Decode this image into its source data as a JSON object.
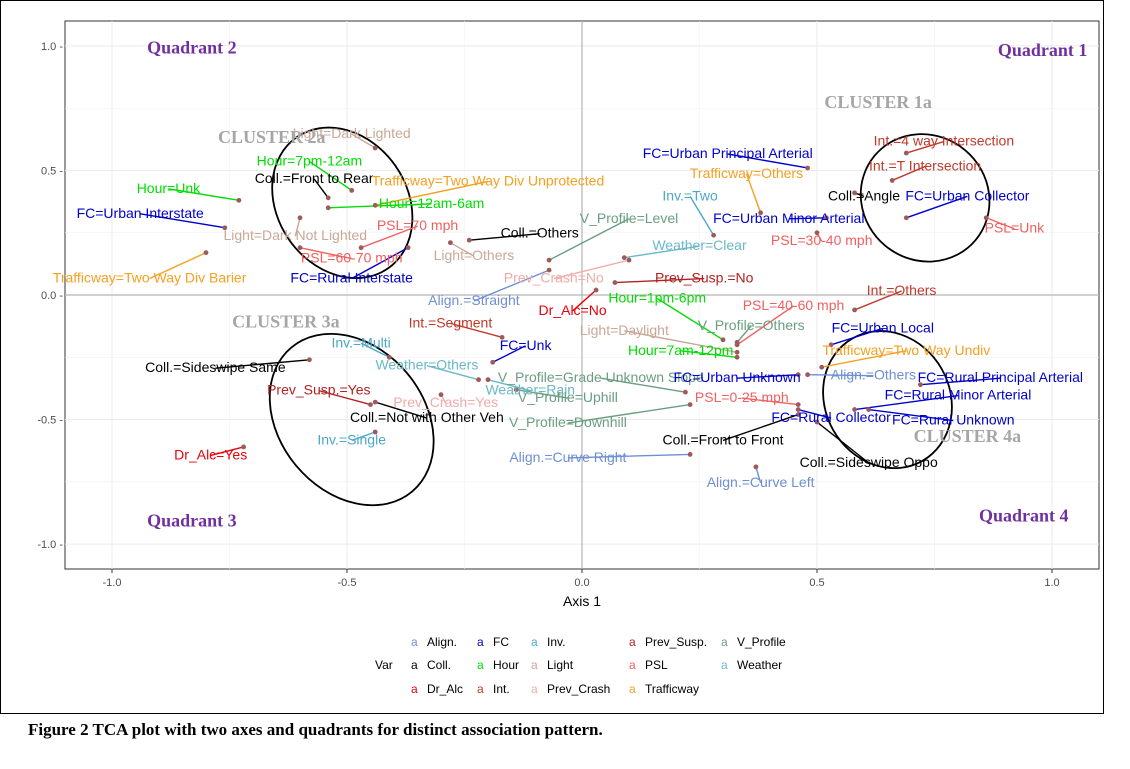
{
  "caption": "Figure 2 TCA plot with two axes and quadrants for distinct association pattern.",
  "colors": {
    "Align.": "#6e8fd4",
    "Coll.": "#000000",
    "Dr_Alc": "#e8000b",
    "FC": "#0000cc",
    "Hour": "#00dd00",
    "Int.": "#c0392b",
    "Inv.": "#4ba8c8",
    "Light": "#c8a898",
    "Prev_Crash": "#f0aaaa",
    "Prev_Susp.": "#b22222",
    "PSL": "#f06060",
    "Trafficway": "#f5a020",
    "V_Profile": "#6a9e80",
    "Weather": "#6ab8c8",
    "point": "#9e5a5a",
    "quadrant": "#7030a0",
    "cluster": "#a6a6a6"
  },
  "chart_data": {
    "type": "scatter",
    "xlabel": "Axis 1",
    "ylabel": "",
    "xlim": [
      -1.1,
      1.1
    ],
    "ylim": [
      -1.1,
      1.1
    ],
    "x_ticks": [
      -1.0,
      -0.5,
      0.0,
      0.5,
      1.0
    ],
    "y_ticks": [
      -1.0,
      -0.5,
      0.0,
      0.5,
      1.0
    ],
    "x_tick_labels": [
      "-1.0",
      "-0.5",
      "0.0",
      "0.5",
      "1.0"
    ],
    "y_tick_labels": [
      "-1.0 -",
      "-0.5 -",
      "0.0 -",
      "0.5 -",
      "1.0 -"
    ],
    "grid": true,
    "legend": {
      "title": "Var",
      "position": "bottom",
      "key_glyph": "a",
      "entries": [
        "Align.",
        "Coll.",
        "Dr_Alc",
        "FC",
        "Hour",
        "Int.",
        "Inv.",
        "Light",
        "Prev_Crash",
        "Prev_Susp.",
        "PSL",
        "Trafficway",
        "V_Profile",
        "Weather"
      ]
    },
    "quadrants": [
      {
        "text": "Quadrant 1",
        "x": 0.98,
        "y": 0.96
      },
      {
        "text": "Quadrant 2",
        "x": -0.83,
        "y": 0.97
      },
      {
        "text": "Quadrant 3",
        "x": -0.83,
        "y": -0.93
      },
      {
        "text": "Quadrant 4",
        "x": 0.94,
        "y": -0.91
      }
    ],
    "clusters": [
      {
        "text": "CLUSTER 1a",
        "x": 0.63,
        "y": 0.75,
        "ellipse": {
          "cx": 0.73,
          "cy": 0.39,
          "rx": 0.14,
          "ry": 0.25,
          "rot": 40
        }
      },
      {
        "text": "CLUSTER 2a",
        "x": -0.66,
        "y": 0.61,
        "ellipse": {
          "cx": -0.51,
          "cy": 0.37,
          "rx": 0.17,
          "ry": 0.26,
          "rot": 55
        }
      },
      {
        "text": "CLUSTER 3a",
        "x": -0.63,
        "y": -0.13,
        "ellipse": {
          "cx": -0.49,
          "cy": -0.5,
          "rx": 0.2,
          "ry": 0.29,
          "rot": 50
        }
      },
      {
        "text": "CLUSTER 4a",
        "x": 0.82,
        "y": -0.59,
        "ellipse": {
          "cx": 0.65,
          "cy": -0.42,
          "rx": 0.15,
          "ry": 0.25,
          "rot": 60
        }
      }
    ],
    "points": [
      {
        "label": "Light=Dark Lighted",
        "var": "Light",
        "x": -0.44,
        "y": 0.59,
        "lx": -0.49,
        "ly": 0.63
      },
      {
        "label": "Hour=7pm-12am",
        "var": "Hour",
        "x": -0.49,
        "y": 0.42,
        "lx": -0.58,
        "ly": 0.52
      },
      {
        "label": "Coll.=Front to Rear",
        "var": "Coll.",
        "x": -0.54,
        "y": 0.39,
        "lx": -0.57,
        "ly": 0.45
      },
      {
        "label": "Hour=Unk",
        "var": "Hour",
        "x": -0.73,
        "y": 0.38,
        "lx": -0.88,
        "ly": 0.41
      },
      {
        "label": "Trafficway=Two Way Div Unprotected",
        "var": "Trafficway",
        "x": -0.44,
        "y": 0.36,
        "lx": -0.2,
        "ly": 0.44
      },
      {
        "label": "Hour=12am-6am",
        "var": "Hour",
        "x": -0.54,
        "y": 0.35,
        "lx": -0.32,
        "ly": 0.35
      },
      {
        "label": "FC=Urban Interstate",
        "var": "FC",
        "x": -0.76,
        "y": 0.27,
        "lx": -0.94,
        "ly": 0.31
      },
      {
        "label": "Light=Dark Not Lighted",
        "var": "Light",
        "x": -0.6,
        "y": 0.31,
        "lx": -0.61,
        "ly": 0.22
      },
      {
        "label": "PSL=70 mph",
        "var": "PSL",
        "x": -0.47,
        "y": 0.19,
        "lx": -0.35,
        "ly": 0.26
      },
      {
        "label": "Coll.=Others",
        "var": "Coll.",
        "x": -0.24,
        "y": 0.22,
        "lx": -0.09,
        "ly": 0.23
      },
      {
        "label": "PSL=60-70 mph",
        "var": "PSL",
        "x": -0.6,
        "y": 0.19,
        "lx": -0.49,
        "ly": 0.13
      },
      {
        "label": "Light=Others",
        "var": "Light",
        "x": -0.28,
        "y": 0.21,
        "lx": -0.23,
        "ly": 0.14
      },
      {
        "label": "FC=Rural Interstate",
        "var": "FC",
        "x": -0.37,
        "y": 0.19,
        "lx": -0.49,
        "ly": 0.05
      },
      {
        "label": "Trafficway=Two Way Div Barier",
        "var": "Trafficway",
        "x": -0.8,
        "y": 0.17,
        "lx": -0.92,
        "ly": 0.05
      },
      {
        "label": "FC=Urban Principal Arterial",
        "var": "FC",
        "x": 0.48,
        "y": 0.51,
        "lx": 0.31,
        "ly": 0.55
      },
      {
        "label": "Trafficway=Others",
        "var": "Trafficway",
        "x": 0.38,
        "y": 0.33,
        "lx": 0.35,
        "ly": 0.47
      },
      {
        "label": "Inv.=Two",
        "var": "Inv.",
        "x": 0.28,
        "y": 0.24,
        "lx": 0.23,
        "ly": 0.38
      },
      {
        "label": "FC=Urban Minor Arterial",
        "var": "FC",
        "x": 0.52,
        "y": 0.31,
        "lx": 0.44,
        "ly": 0.29
      },
      {
        "label": "V_Profile=Level",
        "var": "V_Profile",
        "x": -0.07,
        "y": 0.14,
        "lx": 0.1,
        "ly": 0.29
      },
      {
        "label": "Weather=Clear",
        "var": "Weather",
        "x": 0.09,
        "y": 0.15,
        "lx": 0.25,
        "ly": 0.18
      },
      {
        "label": "PSL=30-40 mph",
        "var": "PSL",
        "x": 0.5,
        "y": 0.25,
        "lx": 0.51,
        "ly": 0.2
      },
      {
        "label": "Prev_Crash=No",
        "var": "Prev_Crash",
        "x": 0.1,
        "y": 0.14,
        "lx": -0.06,
        "ly": 0.05
      },
      {
        "label": "Prev_Susp.=No",
        "var": "Prev_Susp.",
        "x": 0.07,
        "y": 0.05,
        "lx": 0.26,
        "ly": 0.05
      },
      {
        "label": "Align.=Straight",
        "var": "Align.",
        "x": -0.07,
        "y": 0.1,
        "lx": -0.23,
        "ly": -0.04
      },
      {
        "label": "Dr_Alc=No",
        "var": "Dr_Alc",
        "x": 0.03,
        "y": 0.02,
        "lx": -0.02,
        "ly": -0.08
      },
      {
        "label": "Int.=4 way Intersection",
        "var": "Int.",
        "x": 0.69,
        "y": 0.57,
        "lx": 0.77,
        "ly": 0.6
      },
      {
        "label": "Int.=T Intersection",
        "var": "Int.",
        "x": 0.66,
        "y": 0.46,
        "lx": 0.73,
        "ly": 0.5
      },
      {
        "label": "Coll.=Angle",
        "var": "Coll.",
        "x": 0.58,
        "y": 0.41,
        "lx": 0.6,
        "ly": 0.38
      },
      {
        "label": "FC=Urban Collector",
        "var": "FC",
        "x": 0.69,
        "y": 0.31,
        "lx": 0.82,
        "ly": 0.38
      },
      {
        "label": "PSL=Unk",
        "var": "PSL",
        "x": 0.86,
        "y": 0.31,
        "lx": 0.92,
        "ly": 0.25
      },
      {
        "label": "Int.=Others",
        "var": "Int.",
        "x": 0.58,
        "y": -0.06,
        "lx": 0.68,
        "ly": 0.0
      },
      {
        "label": "Hour=1pm-6pm",
        "var": "Hour",
        "x": 0.3,
        "y": -0.18,
        "lx": 0.16,
        "ly": -0.03
      },
      {
        "label": "PSL=40-60 mph",
        "var": "PSL",
        "x": 0.33,
        "y": -0.2,
        "lx": 0.45,
        "ly": -0.06
      },
      {
        "label": "Light=Daylight",
        "var": "Light",
        "x": 0.33,
        "y": -0.23,
        "lx": 0.09,
        "ly": -0.16
      },
      {
        "label": "V_Profile=Others",
        "var": "V_Profile",
        "x": 0.33,
        "y": -0.19,
        "lx": 0.36,
        "ly": -0.14
      },
      {
        "label": "FC=Urban Local",
        "var": "FC",
        "x": 0.53,
        "y": -0.2,
        "lx": 0.64,
        "ly": -0.15
      },
      {
        "label": "Hour=7am-12pm",
        "var": "Hour",
        "x": 0.33,
        "y": -0.25,
        "lx": 0.21,
        "ly": -0.24
      },
      {
        "label": "Int.=Segment",
        "var": "Int.",
        "x": -0.17,
        "y": -0.17,
        "lx": -0.28,
        "ly": -0.13
      },
      {
        "label": "Inv.=Multi",
        "var": "Inv.",
        "x": -0.41,
        "y": -0.25,
        "lx": -0.47,
        "ly": -0.21
      },
      {
        "label": "FC=Unk",
        "var": "FC",
        "x": -0.19,
        "y": -0.27,
        "lx": -0.12,
        "ly": -0.22
      },
      {
        "label": "Trafficway=Two Way Undiv",
        "var": "Trafficway",
        "x": 0.51,
        "y": -0.29,
        "lx": 0.69,
        "ly": -0.24
      },
      {
        "label": "Coll.=Sideswipe Same",
        "var": "Coll.",
        "x": -0.58,
        "y": -0.26,
        "lx": -0.78,
        "ly": -0.31
      },
      {
        "label": "Weather=Others",
        "var": "Weather",
        "x": -0.22,
        "y": -0.34,
        "lx": -0.33,
        "ly": -0.3
      },
      {
        "label": "V_Profile=Grade Unknown Slope",
        "var": "V_Profile",
        "x": 0.22,
        "y": -0.39,
        "lx": 0.04,
        "ly": -0.35
      },
      {
        "label": "FC=Urban Unknown",
        "var": "FC",
        "x": 0.46,
        "y": -0.32,
        "lx": 0.33,
        "ly": -0.35
      },
      {
        "label": "Align.=Others",
        "var": "Align.",
        "x": 0.48,
        "y": -0.32,
        "lx": 0.62,
        "ly": -0.34
      },
      {
        "label": "FC=Rural Principal Arterial",
        "var": "FC",
        "x": 0.72,
        "y": -0.36,
        "lx": 0.89,
        "ly": -0.35
      },
      {
        "label": "Weather=Rain",
        "var": "Weather",
        "x": -0.2,
        "y": -0.34,
        "lx": -0.11,
        "ly": -0.4
      },
      {
        "label": "Prev_Susp.=Yes",
        "var": "Prev_Susp.",
        "x": -0.45,
        "y": -0.44,
        "lx": -0.56,
        "ly": -0.4
      },
      {
        "label": "Prev_Crash=Yes",
        "var": "Prev_Crash",
        "x": -0.3,
        "y": -0.4,
        "lx": -0.29,
        "ly": -0.45
      },
      {
        "label": "V_Profile=Uphill",
        "var": "V_Profile",
        "x": -0.14,
        "y": -0.38,
        "lx": -0.03,
        "ly": -0.43
      },
      {
        "label": "PSL=0-25 mph",
        "var": "PSL",
        "x": 0.46,
        "y": -0.44,
        "lx": 0.34,
        "ly": -0.43
      },
      {
        "label": "FC=Rural Minor Arterial",
        "var": "FC",
        "x": 0.58,
        "y": -0.46,
        "lx": 0.8,
        "ly": -0.42
      },
      {
        "label": "Coll.=Not with Other Veh",
        "var": "Coll.",
        "x": -0.44,
        "y": -0.43,
        "lx": -0.33,
        "ly": -0.51
      },
      {
        "label": "V_Profile=Downhill",
        "var": "V_Profile",
        "x": 0.23,
        "y": -0.44,
        "lx": -0.03,
        "ly": -0.53
      },
      {
        "label": "FC=Rural Collector",
        "var": "FC",
        "x": 0.46,
        "y": -0.46,
        "lx": 0.53,
        "ly": -0.51
      },
      {
        "label": "FC=Rural Unknown",
        "var": "FC",
        "x": 0.61,
        "y": -0.46,
        "lx": 0.79,
        "ly": -0.52
      },
      {
        "label": "Inv.=Single",
        "var": "Inv.",
        "x": -0.44,
        "y": -0.55,
        "lx": -0.49,
        "ly": -0.6
      },
      {
        "label": "Coll.=Front to Front",
        "var": "Coll.",
        "x": 0.46,
        "y": -0.48,
        "lx": 0.3,
        "ly": -0.6
      },
      {
        "label": "Dr_Alc=Yes",
        "var": "Dr_Alc",
        "x": -0.72,
        "y": -0.61,
        "lx": -0.79,
        "ly": -0.66
      },
      {
        "label": "Align.=Curve Right",
        "var": "Align.",
        "x": 0.23,
        "y": -0.64,
        "lx": -0.03,
        "ly": -0.67
      },
      {
        "label": "Coll.=Sideswipe Oppo",
        "var": "Coll.",
        "x": 0.5,
        "y": -0.51,
        "lx": 0.61,
        "ly": -0.69
      },
      {
        "label": "Align.=Curve Left",
        "var": "Align.",
        "x": 0.37,
        "y": -0.69,
        "lx": 0.38,
        "ly": -0.77
      }
    ]
  }
}
